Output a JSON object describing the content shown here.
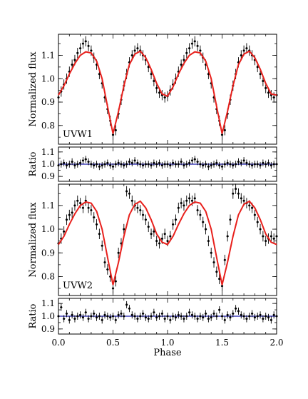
{
  "chart_data": {
    "type": "scatter",
    "xlabel": "Phase",
    "xlim": [
      0.0,
      2.0
    ],
    "xticks": [
      "0.0",
      "0.5",
      "1.0",
      "1.5",
      "2.0"
    ],
    "colors": {
      "data": "#000000",
      "model": "#e8201c",
      "ratio_line": "#1c1caa"
    },
    "panels": [
      {
        "id": "uvw1-flux",
        "label": "UVW1",
        "ylabel": "Normalized flux",
        "ylim": [
          0.72,
          1.19
        ],
        "yticks": [
          "0.8",
          "0.9",
          "1.0",
          "1.1"
        ],
        "model": {
          "phase": [
            0.0,
            0.05,
            0.1,
            0.15,
            0.2,
            0.25,
            0.3,
            0.35,
            0.4,
            0.45,
            0.5,
            0.55,
            0.6,
            0.65,
            0.7,
            0.75,
            0.8,
            0.85,
            0.9,
            0.95,
            1.0,
            1.05,
            1.1,
            1.15,
            1.2,
            1.25,
            1.3,
            1.35,
            1.4,
            1.45,
            1.5,
            1.55,
            1.6,
            1.65,
            1.7,
            1.75,
            1.8,
            1.85,
            1.9,
            1.95,
            2.0
          ],
          "flux": [
            0.93,
            0.97,
            1.02,
            1.065,
            1.1,
            1.115,
            1.11,
            1.075,
            1.0,
            0.88,
            0.765,
            0.86,
            0.97,
            1.06,
            1.105,
            1.118,
            1.09,
            1.04,
            0.98,
            0.935,
            0.925,
            0.965,
            1.02,
            1.065,
            1.1,
            1.115,
            1.11,
            1.075,
            1.0,
            0.88,
            0.765,
            0.86,
            0.97,
            1.06,
            1.105,
            1.118,
            1.09,
            1.04,
            0.98,
            0.935,
            0.93
          ]
        },
        "points": {
          "phase": [
            0.0,
            0.025,
            0.05,
            0.075,
            0.1,
            0.125,
            0.15,
            0.175,
            0.2,
            0.225,
            0.25,
            0.275,
            0.3,
            0.325,
            0.35,
            0.375,
            0.4,
            0.425,
            0.45,
            0.475,
            0.5,
            0.525,
            0.55,
            0.575,
            0.6,
            0.625,
            0.65,
            0.675,
            0.7,
            0.725,
            0.75,
            0.775,
            0.8,
            0.825,
            0.85,
            0.875,
            0.9,
            0.925,
            0.95,
            0.975,
            1.0,
            1.025,
            1.05,
            1.075,
            1.1,
            1.125,
            1.15,
            1.175,
            1.2,
            1.225,
            1.25,
            1.275,
            1.3,
            1.325,
            1.35,
            1.375,
            1.4,
            1.425,
            1.45,
            1.475,
            1.5,
            1.525,
            1.55,
            1.575,
            1.6,
            1.625,
            1.65,
            1.675,
            1.7,
            1.725,
            1.75,
            1.775,
            1.8,
            1.825,
            1.85,
            1.875,
            1.9,
            1.925,
            1.95,
            1.975,
            2.0
          ],
          "flux": [
            0.92,
            0.945,
            0.975,
            1.0,
            1.03,
            1.06,
            1.08,
            1.11,
            1.13,
            1.15,
            1.16,
            1.14,
            1.12,
            1.09,
            1.06,
            1.02,
            0.98,
            0.92,
            0.87,
            0.82,
            0.76,
            0.78,
            0.85,
            0.91,
            0.97,
            1.02,
            1.07,
            1.1,
            1.12,
            1.13,
            1.12,
            1.1,
            1.08,
            1.05,
            1.02,
            0.99,
            0.96,
            0.94,
            0.93,
            0.92,
            0.925,
            0.95,
            0.975,
            1.0,
            1.03,
            1.06,
            1.08,
            1.11,
            1.13,
            1.15,
            1.16,
            1.14,
            1.12,
            1.09,
            1.06,
            1.02,
            0.98,
            0.92,
            0.87,
            0.82,
            0.76,
            0.78,
            0.85,
            0.91,
            0.97,
            1.02,
            1.07,
            1.1,
            1.12,
            1.13,
            1.12,
            1.1,
            1.08,
            1.05,
            1.02,
            0.99,
            0.96,
            0.94,
            0.93,
            0.92,
            0.93
          ]
        }
      },
      {
        "id": "uvw1-ratio",
        "ylabel": "Ratio",
        "ylim": [
          0.86,
          1.14
        ],
        "yticks": [
          "0.9",
          "1.0",
          "1.1"
        ],
        "reference": 1.0,
        "points": {
          "phase": [
            0.0,
            0.025,
            0.05,
            0.075,
            0.1,
            0.125,
            0.15,
            0.175,
            0.2,
            0.225,
            0.25,
            0.275,
            0.3,
            0.325,
            0.35,
            0.375,
            0.4,
            0.425,
            0.45,
            0.475,
            0.5,
            0.525,
            0.55,
            0.575,
            0.6,
            0.625,
            0.65,
            0.675,
            0.7,
            0.725,
            0.75,
            0.775,
            0.8,
            0.825,
            0.85,
            0.875,
            0.9,
            0.925,
            0.95,
            0.975,
            1.0,
            1.025,
            1.05,
            1.075,
            1.1,
            1.125,
            1.15,
            1.175,
            1.2,
            1.225,
            1.25,
            1.275,
            1.3,
            1.325,
            1.35,
            1.375,
            1.4,
            1.425,
            1.45,
            1.475,
            1.5,
            1.525,
            1.55,
            1.575,
            1.6,
            1.625,
            1.65,
            1.675,
            1.7,
            1.725,
            1.75,
            1.775,
            1.8,
            1.825,
            1.85,
            1.875,
            1.9,
            1.925,
            1.95,
            1.975,
            2.0
          ],
          "ratio": [
            0.99,
            1.0,
            1.01,
            0.99,
            1.0,
            1.02,
            0.99,
            1.0,
            1.01,
            1.03,
            1.04,
            1.02,
            1.0,
            0.99,
            1.0,
            0.98,
            0.99,
            1.0,
            1.01,
            0.99,
            0.98,
            1.0,
            1.01,
            1.0,
            0.99,
            1.0,
            1.02,
            1.01,
            1.03,
            1.01,
            1.0,
            0.99,
            1.0,
            1.0,
            0.99,
            1.01,
            1.0,
            1.01,
            0.99,
            1.0,
            1.0,
            0.99,
            1.01,
            1.0,
            1.0,
            1.02,
            0.99,
            1.0,
            1.01,
            1.03,
            1.04,
            1.02,
            1.0,
            0.99,
            1.0,
            0.98,
            0.99,
            1.0,
            1.01,
            0.99,
            0.98,
            1.0,
            1.01,
            1.0,
            0.99,
            1.0,
            1.02,
            1.01,
            1.03,
            1.01,
            1.0,
            0.99,
            1.0,
            1.0,
            0.99,
            1.01,
            1.0,
            1.01,
            0.99,
            1.0,
            1.0
          ]
        }
      },
      {
        "id": "uvw2-flux",
        "label": "UVW2",
        "ylabel": "Normalized flux",
        "ylim": [
          0.72,
          1.19
        ],
        "yticks": [
          "0.8",
          "0.9",
          "1.0",
          "1.1"
        ],
        "model": {
          "phase": [
            0.0,
            0.05,
            0.1,
            0.15,
            0.2,
            0.25,
            0.3,
            0.35,
            0.4,
            0.45,
            0.5,
            0.55,
            0.6,
            0.65,
            0.7,
            0.75,
            0.8,
            0.85,
            0.9,
            0.95,
            1.0,
            1.05,
            1.1,
            1.15,
            1.2,
            1.25,
            1.3,
            1.35,
            1.4,
            1.45,
            1.5,
            1.55,
            1.6,
            1.65,
            1.7,
            1.75,
            1.8,
            1.85,
            1.9,
            1.95,
            2.0
          ],
          "flux": [
            0.935,
            0.97,
            1.02,
            1.065,
            1.1,
            1.115,
            1.11,
            1.075,
            1.0,
            0.88,
            0.765,
            0.86,
            0.97,
            1.06,
            1.105,
            1.118,
            1.09,
            1.04,
            0.98,
            0.945,
            0.935,
            0.97,
            1.02,
            1.065,
            1.1,
            1.115,
            1.11,
            1.075,
            1.0,
            0.88,
            0.765,
            0.86,
            0.97,
            1.06,
            1.105,
            1.118,
            1.09,
            1.04,
            0.98,
            0.945,
            0.935
          ]
        },
        "points": {
          "phase": [
            0.0,
            0.025,
            0.05,
            0.075,
            0.1,
            0.125,
            0.15,
            0.175,
            0.2,
            0.225,
            0.25,
            0.275,
            0.3,
            0.325,
            0.35,
            0.375,
            0.4,
            0.425,
            0.45,
            0.475,
            0.5,
            0.525,
            0.55,
            0.575,
            0.6,
            0.625,
            0.65,
            0.675,
            0.7,
            0.725,
            0.75,
            0.775,
            0.8,
            0.825,
            0.85,
            0.875,
            0.9,
            0.925,
            0.95,
            0.975,
            1.0,
            1.025,
            1.05,
            1.075,
            1.1,
            1.125,
            1.15,
            1.175,
            1.2,
            1.225,
            1.25,
            1.275,
            1.3,
            1.325,
            1.35,
            1.375,
            1.4,
            1.425,
            1.45,
            1.475,
            1.5,
            1.525,
            1.55,
            1.575,
            1.6,
            1.625,
            1.65,
            1.675,
            1.7,
            1.725,
            1.75,
            1.775,
            1.8,
            1.825,
            1.85,
            1.875,
            1.9,
            1.925,
            1.95,
            1.975,
            2.0
          ],
          "flux": [
            0.94,
            0.96,
            0.99,
            1.04,
            1.06,
            1.07,
            1.1,
            1.12,
            1.11,
            1.09,
            1.12,
            1.09,
            1.08,
            1.05,
            1.02,
            0.98,
            0.93,
            0.86,
            0.83,
            0.8,
            0.75,
            0.78,
            0.9,
            0.94,
            1.0,
            1.16,
            1.15,
            1.12,
            1.1,
            1.09,
            1.08,
            1.06,
            1.04,
            1.01,
            0.98,
            0.99,
            0.95,
            0.94,
            0.96,
            0.98,
            0.95,
            0.97,
            1.02,
            1.04,
            1.09,
            1.11,
            1.1,
            1.12,
            1.13,
            1.12,
            1.13,
            1.08,
            1.06,
            1.03,
            1.0,
            0.95,
            0.9,
            0.86,
            0.82,
            0.79,
            0.76,
            0.87,
            0.97,
            1.04,
            1.15,
            1.17,
            1.15,
            1.13,
            1.12,
            1.11,
            1.1,
            1.09,
            1.06,
            1.03,
            1.0,
            0.97,
            0.95,
            0.96,
            0.97,
            0.96,
            0.97
          ]
        }
      },
      {
        "id": "uvw2-ratio",
        "ylabel": "Ratio",
        "ylim": [
          0.86,
          1.14
        ],
        "yticks": [
          "0.9",
          "1.0",
          "1.1"
        ],
        "reference": 1.0,
        "points": {
          "phase": [
            0.0,
            0.025,
            0.05,
            0.075,
            0.1,
            0.125,
            0.15,
            0.175,
            0.2,
            0.225,
            0.25,
            0.275,
            0.3,
            0.325,
            0.35,
            0.375,
            0.4,
            0.425,
            0.45,
            0.475,
            0.5,
            0.525,
            0.55,
            0.575,
            0.6,
            0.625,
            0.65,
            0.675,
            0.7,
            0.725,
            0.75,
            0.775,
            0.8,
            0.825,
            0.85,
            0.875,
            0.9,
            0.925,
            0.95,
            0.975,
            1.0,
            1.025,
            1.05,
            1.075,
            1.1,
            1.125,
            1.15,
            1.175,
            1.2,
            1.225,
            1.25,
            1.275,
            1.3,
            1.325,
            1.35,
            1.375,
            1.4,
            1.425,
            1.45,
            1.475,
            1.5,
            1.525,
            1.55,
            1.575,
            1.6,
            1.625,
            1.65,
            1.675,
            1.7,
            1.725,
            1.75,
            1.775,
            1.8,
            1.825,
            1.85,
            1.875,
            1.9,
            1.925,
            1.95,
            1.975,
            2.0
          ],
          "ratio": [
            1.0,
            1.07,
            0.98,
            1.02,
            0.97,
            1.01,
            0.98,
            1.0,
            1.01,
            0.99,
            1.03,
            0.98,
            1.0,
            1.02,
            0.99,
            1.0,
            0.97,
            1.01,
            1.0,
            0.99,
            1.0,
            0.97,
            1.01,
            1.02,
            1.0,
            1.09,
            1.06,
            1.01,
            1.0,
            0.98,
            1.0,
            1.02,
            0.99,
            0.98,
            1.0,
            1.03,
            0.99,
            1.0,
            1.02,
            0.98,
            1.0,
            0.97,
            1.0,
            0.99,
            1.01,
            1.0,
            0.98,
            1.0,
            1.03,
            1.01,
            1.0,
            0.98,
            1.0,
            0.99,
            1.02,
            0.98,
            0.99,
            1.02,
            1.0,
            1.05,
            1.0,
            0.97,
            1.01,
            0.99,
            1.02,
            1.06,
            1.04,
            1.01,
            1.0,
            0.98,
            1.0,
            1.02,
            0.99,
            1.0,
            1.01,
            0.98,
            1.0,
            0.99,
            0.97,
            1.01,
            1.0
          ]
        }
      }
    ]
  }
}
